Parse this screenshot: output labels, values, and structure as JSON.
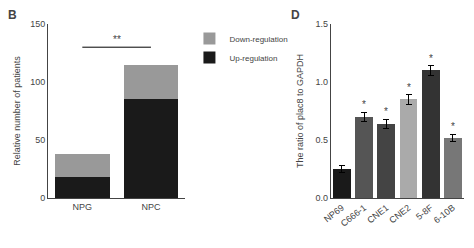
{
  "chart_data": [
    {
      "type": "bar",
      "title": "B",
      "stacked": true,
      "categories": [
        "NPG",
        "NPC"
      ],
      "series": [
        {
          "name": "Up-regulation",
          "color": "#1a1a1a",
          "values": [
            18,
            85
          ]
        },
        {
          "name": "Down-regulation",
          "color": "#999999",
          "values": [
            20,
            30
          ]
        }
      ],
      "ylabel": "Relative number of patients",
      "ylim": [
        0,
        150
      ],
      "yticks": [
        0,
        50,
        100,
        150
      ],
      "annotations": [
        {
          "text": "**",
          "categories": [
            "NPG",
            "NPC"
          ]
        }
      ],
      "legend": "upper right",
      "grid": false
    },
    {
      "type": "bar",
      "title": "D",
      "categories": [
        "NP69",
        "C666-1",
        "CNE1",
        "CNE2",
        "5-8F",
        "6-10B"
      ],
      "values": [
        0.25,
        0.7,
        0.64,
        0.85,
        1.1,
        0.52
      ],
      "errors": [
        0.03,
        0.04,
        0.04,
        0.04,
        0.04,
        0.03
      ],
      "colors": [
        "#1a1a1a",
        "#555555",
        "#444444",
        "#aaaaaa",
        "#333333",
        "#777777"
      ],
      "ylabel": "The ratio of plac8 to GAPDH",
      "ylim": [
        0,
        1.5
      ],
      "yticks": [
        {
          "value": 0,
          "label": "0.0"
        },
        0.5,
        {
          "value": 1,
          "label": "1.0"
        },
        1.5
      ],
      "annotations": [
        {
          "text": "*",
          "category": "C666-1"
        },
        {
          "text": "*",
          "category": "CNE1"
        },
        {
          "text": "*",
          "category": "CNE2"
        },
        {
          "text": "*",
          "category": "5-8F"
        },
        {
          "text": "*",
          "category": "6-10B"
        }
      ],
      "grid": false
    }
  ]
}
